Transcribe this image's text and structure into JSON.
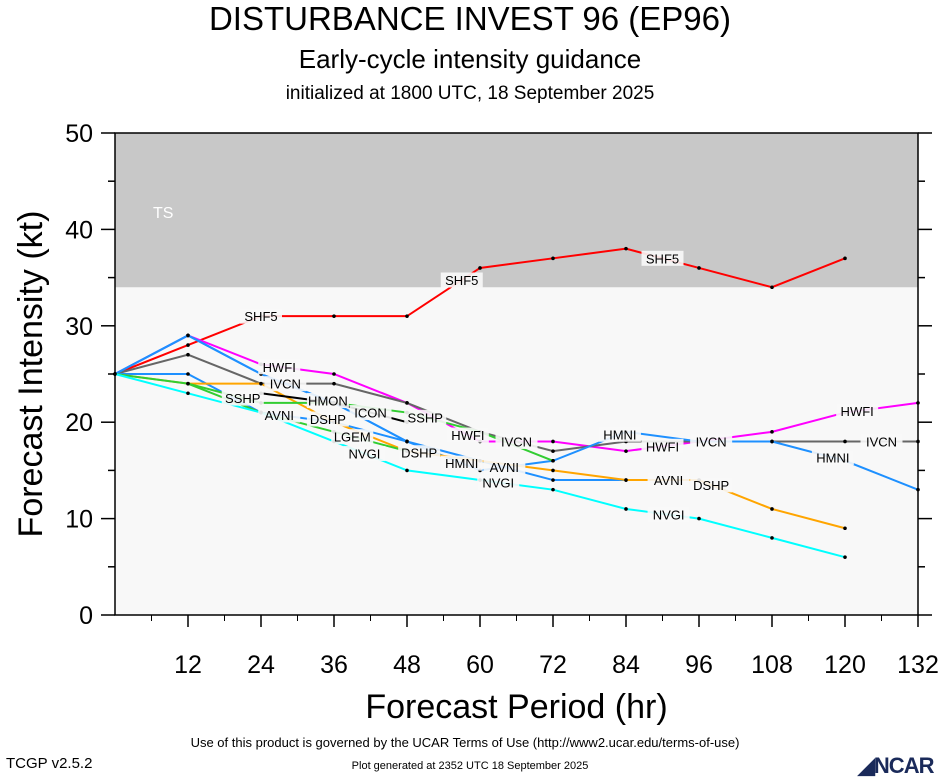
{
  "header": {
    "title": "DISTURBANCE INVEST 96 (EP96)",
    "subtitle": "Early-cycle intensity guidance",
    "initialized": "initialized at 1800 UTC, 18 September 2025"
  },
  "footer": {
    "terms": "Use of this product is governed by the UCAR Terms of Use (http://www2.ucar.edu/terms-of-use)",
    "generated": "Plot generated at 2352 UTC   18 September 2025",
    "version": "TCGP v2.5.2",
    "logo": "NCAR"
  },
  "chart_data": {
    "type": "line",
    "xlabel": "Forecast Period (hr)",
    "ylabel": "Forecast Intensity (kt)",
    "xlim": [
      0,
      132
    ],
    "ylim": [
      0,
      50
    ],
    "xticks": [
      12,
      24,
      36,
      48,
      60,
      72,
      84,
      96,
      108,
      120,
      132
    ],
    "yticks": [
      0,
      10,
      20,
      30,
      40,
      50
    ],
    "bands": [
      {
        "label": "TS",
        "from": 34,
        "to": 50,
        "color": "#c8c8c8"
      }
    ],
    "background": "#f8f8f8",
    "series": [
      {
        "name": "SHF5",
        "color": "#ff0000",
        "x": [
          0,
          12,
          24,
          36,
          48,
          60,
          72,
          84,
          96,
          108,
          120
        ],
        "y": [
          25,
          28,
          31,
          31,
          31,
          36,
          37,
          38,
          36,
          34,
          37
        ],
        "labels_at": [
          24,
          57,
          90
        ]
      },
      {
        "name": "HWFI",
        "color": "#ff00ff",
        "x": [
          0,
          12,
          24,
          36,
          48,
          60,
          72,
          84,
          96,
          108,
          120,
          132
        ],
        "y": [
          25,
          29,
          26,
          25,
          22,
          18,
          18,
          17,
          18,
          19,
          21,
          22
        ],
        "labels_at": [
          27,
          58,
          90,
          122
        ]
      },
      {
        "name": "IVCN",
        "color": "#666666",
        "x": [
          0,
          12,
          24,
          36,
          48,
          60,
          72,
          84,
          96,
          108,
          120,
          132
        ],
        "y": [
          25,
          27,
          24,
          24,
          22,
          19,
          17,
          18,
          18,
          18,
          18,
          18
        ],
        "labels_at": [
          28,
          60,
          92,
          126
        ]
      },
      {
        "name": "HMNI",
        "color": "#1e90ff",
        "x": [
          0,
          12,
          24,
          36,
          48,
          60,
          72,
          84,
          96,
          108,
          120,
          132
        ],
        "y": [
          25,
          29,
          25,
          22,
          18,
          15,
          16,
          19,
          18,
          18,
          16,
          13
        ],
        "labels_at": [
          57,
          87,
          118
        ]
      },
      {
        "name": "HMON",
        "color": "#1e90ff",
        "x": [
          0,
          12,
          24,
          36,
          48
        ],
        "y": [
          25,
          29,
          25,
          22,
          18
        ],
        "labels_at": [
          27
        ]
      },
      {
        "name": "AVNI",
        "color": "#1e90ff",
        "x": [
          0,
          12,
          24,
          36,
          48,
          60,
          72,
          84,
          96
        ],
        "y": [
          25,
          25,
          21,
          20,
          18,
          16,
          14,
          14,
          14
        ],
        "labels_at": [
          27,
          60,
          91
        ]
      },
      {
        "name": "DSHP",
        "color": "#ffa500",
        "x": [
          0,
          12,
          24,
          36,
          48,
          60,
          72,
          84,
          96,
          108,
          120
        ],
        "y": [
          25,
          24,
          24,
          20,
          17,
          16,
          15,
          14,
          14,
          11,
          9
        ],
        "labels_at": [
          29,
          60,
          92
        ]
      },
      {
        "name": "SSHP",
        "color": "#32cd32",
        "x": [
          0,
          12,
          24,
          36,
          48,
          60,
          72
        ],
        "y": [
          25,
          24,
          22,
          22,
          21,
          19,
          16
        ],
        "labels_at": [
          29,
          59
        ]
      },
      {
        "name": "LGEM",
        "color": "#32cd32",
        "x": [
          12,
          24,
          36,
          48
        ],
        "y": [
          24,
          21,
          19,
          17
        ],
        "labels_at": [
          27
        ]
      },
      {
        "name": "ICON",
        "color": "#000000",
        "x": [
          24,
          36,
          48
        ],
        "y": [
          23,
          22,
          20
        ],
        "labels_at": [
          28
        ]
      },
      {
        "name": "NVGI",
        "color": "#00ffff",
        "x": [
          0,
          12,
          24,
          36,
          48,
          60,
          72,
          84,
          96,
          108,
          120
        ],
        "y": [
          25,
          23,
          21,
          18,
          15,
          14,
          13,
          11,
          10,
          8,
          6
        ],
        "labels_at": [
          27,
          59,
          91
        ]
      }
    ]
  }
}
